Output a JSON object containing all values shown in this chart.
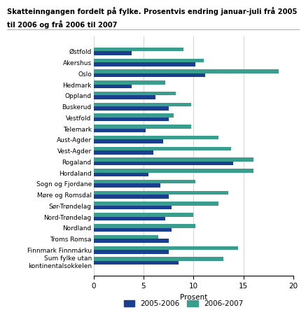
{
  "title_line1": "Skatteinngangen fordelt på fylke. Prosentvis endring januar-juli frå 2005",
  "title_line2": "til 2006 og frå 2006 til 2007",
  "categories": [
    "Østfold",
    "Akershus",
    "Oslo",
    "Hedmark",
    "Oppland",
    "Buskerud",
    "Vestfold",
    "Telemark",
    "Aust-Agder",
    "Vest-Agder",
    "Rogaland",
    "Hordaland",
    "Sogn og Fjordane",
    "Møre og Romsdal",
    "Sør-Trøndelag",
    "Nord-Trøndelag",
    "Nordland",
    "Troms Romsa",
    "Finnmark Finnmárku",
    "Sum fylke utan\nkontinentalsokkelen"
  ],
  "values_2005_2006": [
    3.8,
    10.2,
    11.2,
    3.8,
    6.2,
    7.5,
    7.5,
    5.2,
    7.0,
    6.0,
    14.0,
    5.5,
    6.7,
    7.5,
    7.8,
    7.2,
    7.8,
    7.5,
    7.5,
    8.5
  ],
  "values_2006_2007": [
    9.0,
    11.0,
    18.5,
    7.2,
    8.2,
    9.8,
    8.0,
    9.8,
    12.5,
    13.8,
    16.0,
    16.0,
    10.2,
    13.5,
    12.5,
    10.0,
    10.2,
    6.5,
    14.5,
    13.0
  ],
  "color_2005_2006": "#1a3f8f",
  "color_2006_2007": "#3a9e8f",
  "xlabel": "Prosent",
  "xlim": [
    0,
    20
  ],
  "xticks": [
    0,
    5,
    10,
    15,
    20
  ],
  "legend_labels": [
    "2005-2006",
    "2006-2007"
  ],
  "grid_color": "#cccccc"
}
